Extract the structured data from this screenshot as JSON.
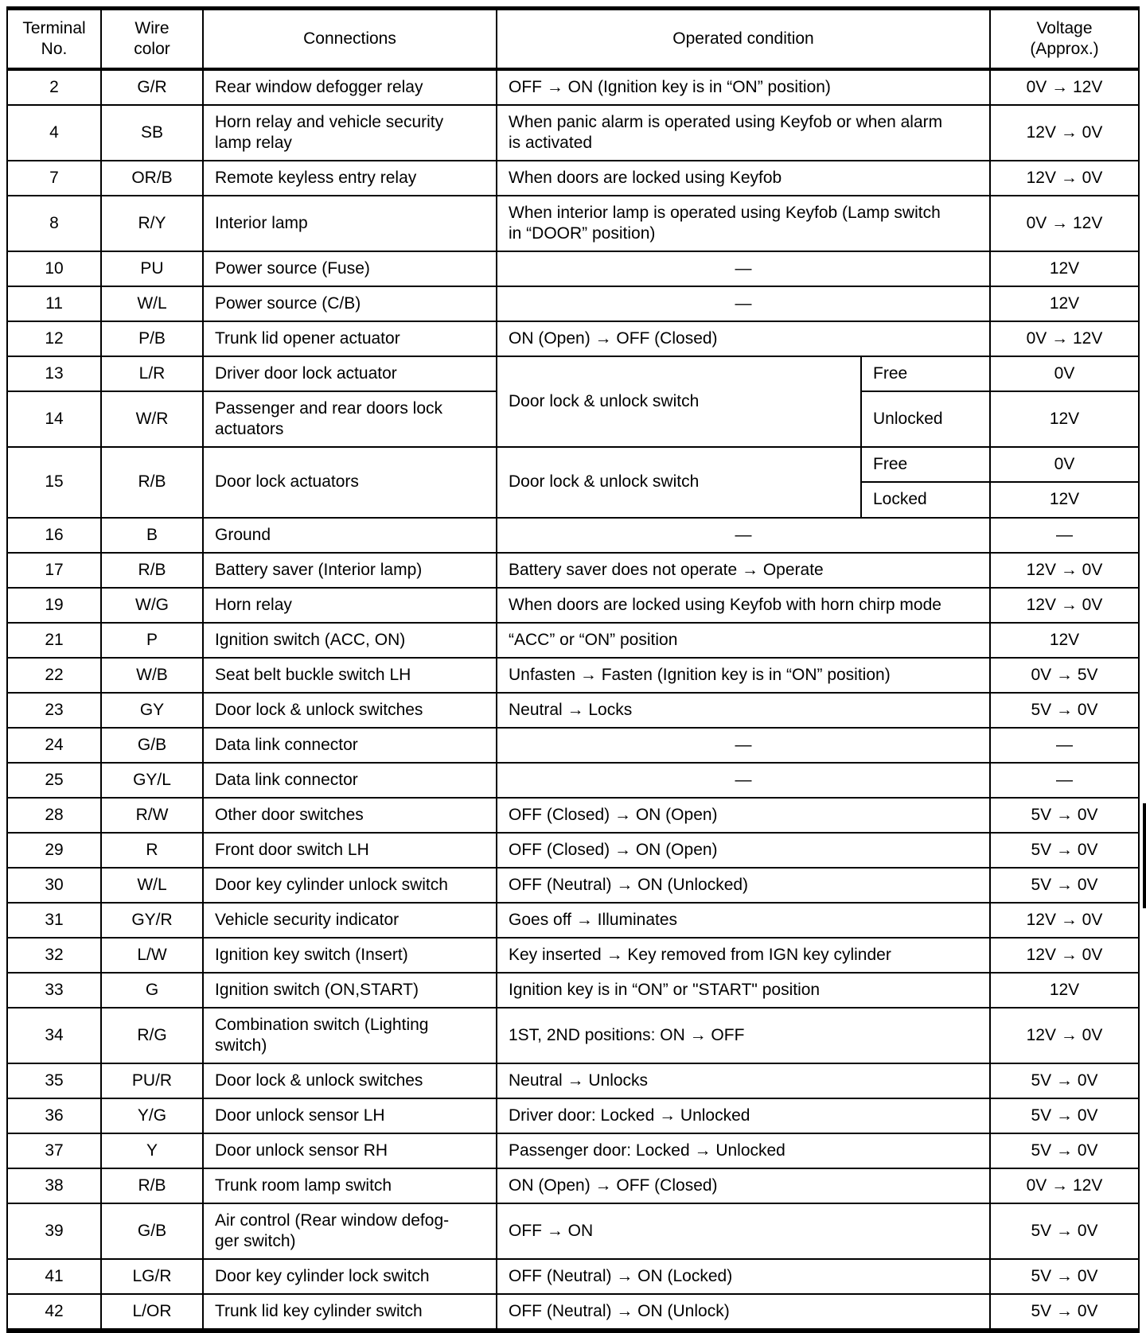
{
  "colors": {
    "text": "#000000",
    "background": "#ffffff",
    "rule": "#000000"
  },
  "header": {
    "terminal": "Terminal\nNo.",
    "wire": "Wire\ncolor",
    "connections": "Connections",
    "condition": "Operated condition",
    "voltage": "Voltage\n(Approx.)"
  },
  "rows": [
    {
      "terminal": "2",
      "wire": "G/R",
      "connections": "Rear window defogger relay",
      "condition": "OFF → ON (Ignition key is in “ON” position)",
      "voltage": "0V → 12V"
    },
    {
      "terminal": "4",
      "wire": "SB",
      "connections": "Horn relay and vehicle security\nlamp relay",
      "condition": "When panic alarm is operated using Keyfob or when alarm\nis activated",
      "voltage": "12V → 0V"
    },
    {
      "terminal": "7",
      "wire": "OR/B",
      "connections": "Remote keyless entry relay",
      "condition": "When doors are locked using Keyfob",
      "voltage": "12V → 0V"
    },
    {
      "terminal": "8",
      "wire": "R/Y",
      "connections": "Interior lamp",
      "condition": "When interior lamp is operated using Keyfob (Lamp switch\nin “DOOR” position)",
      "voltage": "0V → 12V"
    },
    {
      "terminal": "10",
      "wire": "PU",
      "connections": "Power source (Fuse)",
      "condition": "—",
      "voltage": "12V"
    },
    {
      "terminal": "11",
      "wire": "W/L",
      "connections": "Power source (C/B)",
      "condition": "—",
      "voltage": "12V"
    },
    {
      "terminal": "12",
      "wire": "P/B",
      "connections": "Trunk lid opener actuator",
      "condition": "ON (Open) → OFF (Closed)",
      "voltage": "0V → 12V"
    },
    {
      "terminal": "13",
      "wire": "L/R",
      "connections": "Driver door lock actuator",
      "condition_main": "Door lock & unlock switch",
      "condition_sub": "Free",
      "voltage": "0V"
    },
    {
      "terminal": "14",
      "wire": "W/R",
      "connections": "Passenger and rear doors lock\nactuators",
      "condition_sub": "Unlocked",
      "voltage": "12V"
    },
    {
      "terminal": "15",
      "wire": "R/B",
      "connections": "Door lock actuators",
      "condition_main": "Door lock & unlock switch",
      "sub": [
        {
          "state": "Free",
          "voltage": "0V"
        },
        {
          "state": "Locked",
          "voltage": "12V"
        }
      ]
    },
    {
      "terminal": "16",
      "wire": "B",
      "connections": "Ground",
      "condition": "—",
      "voltage": "—"
    },
    {
      "terminal": "17",
      "wire": "R/B",
      "connections": "Battery saver (Interior lamp)",
      "condition": "Battery saver does not operate → Operate",
      "voltage": "12V → 0V"
    },
    {
      "terminal": "19",
      "wire": "W/G",
      "connections": "Horn relay",
      "condition": "When doors are locked using Keyfob with horn chirp mode",
      "voltage": "12V → 0V"
    },
    {
      "terminal": "21",
      "wire": "P",
      "connections": "Ignition switch (ACC, ON)",
      "condition": "“ACC” or “ON” position",
      "voltage": "12V"
    },
    {
      "terminal": "22",
      "wire": "W/B",
      "connections": "Seat belt buckle switch LH",
      "condition": "Unfasten → Fasten (Ignition key is in “ON” position)",
      "voltage": "0V → 5V"
    },
    {
      "terminal": "23",
      "wire": "GY",
      "connections": "Door lock & unlock switches",
      "condition": "Neutral → Locks",
      "voltage": "5V → 0V"
    },
    {
      "terminal": "24",
      "wire": "G/B",
      "connections": "Data link connector",
      "condition": "—",
      "voltage": "—"
    },
    {
      "terminal": "25",
      "wire": "GY/L",
      "connections": "Data link connector",
      "condition": "—",
      "voltage": "—"
    },
    {
      "terminal": "28",
      "wire": "R/W",
      "connections": "Other door switches",
      "condition": "OFF (Closed) → ON (Open)",
      "voltage": "5V → 0V"
    },
    {
      "terminal": "29",
      "wire": "R",
      "connections": "Front door switch LH",
      "condition": "OFF (Closed) → ON (Open)",
      "voltage": "5V → 0V"
    },
    {
      "terminal": "30",
      "wire": "W/L",
      "connections": "Door key cylinder unlock switch",
      "condition": "OFF (Neutral) → ON (Unlocked)",
      "voltage": "5V → 0V"
    },
    {
      "terminal": "31",
      "wire": "GY/R",
      "connections": "Vehicle security indicator",
      "condition": "Goes off → Illuminates",
      "voltage": "12V → 0V"
    },
    {
      "terminal": "32",
      "wire": "L/W",
      "connections": "Ignition key switch (Insert)",
      "condition": "Key inserted → Key removed from IGN key cylinder",
      "voltage": "12V → 0V"
    },
    {
      "terminal": "33",
      "wire": "G",
      "connections": "Ignition switch (ON,START)",
      "condition": "Ignition key is in “ON” or \"START\" position",
      "voltage": "12V"
    },
    {
      "terminal": "34",
      "wire": "R/G",
      "connections": "Combination switch (Lighting\nswitch)",
      "condition": "1ST, 2ND positions: ON → OFF",
      "voltage": "12V → 0V"
    },
    {
      "terminal": "35",
      "wire": "PU/R",
      "connections": "Door lock & unlock switches",
      "condition": "Neutral → Unlocks",
      "voltage": "5V → 0V"
    },
    {
      "terminal": "36",
      "wire": "Y/G",
      "connections": "Door unlock sensor LH",
      "condition": "Driver door: Locked → Unlocked",
      "voltage": "5V → 0V"
    },
    {
      "terminal": "37",
      "wire": "Y",
      "connections": "Door unlock sensor RH",
      "condition": "Passenger door: Locked → Unlocked",
      "voltage": "5V → 0V"
    },
    {
      "terminal": "38",
      "wire": "R/B",
      "connections": "Trunk room lamp switch",
      "condition": "ON (Open) → OFF (Closed)",
      "voltage": "0V → 12V"
    },
    {
      "terminal": "39",
      "wire": "G/B",
      "connections": "Air control (Rear window defog-\nger switch)",
      "condition": "OFF → ON",
      "voltage": "5V → 0V"
    },
    {
      "terminal": "41",
      "wire": "LG/R",
      "connections": "Door key cylinder lock switch",
      "condition": "OFF (Neutral) → ON (Locked)",
      "voltage": "5V → 0V"
    },
    {
      "terminal": "42",
      "wire": "L/OR",
      "connections": "Trunk lid key cylinder switch",
      "condition": "OFF (Neutral) → ON (Unlock)",
      "voltage": "5V → 0V"
    }
  ]
}
